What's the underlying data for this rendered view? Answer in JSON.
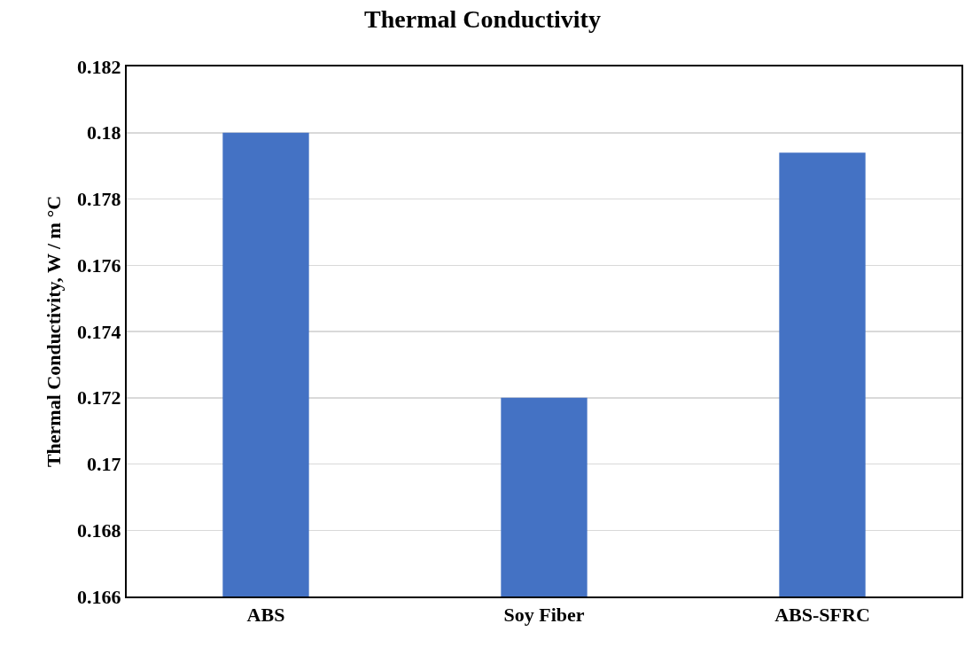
{
  "chart_data": {
    "type": "bar",
    "title": "Thermal Conductivity",
    "ylabel": "Thermal Conductivity, W / m °C",
    "categories": [
      "ABS",
      "Soy Fiber",
      "ABS-SFRC"
    ],
    "values": [
      0.18,
      0.172,
      0.1794
    ],
    "color": "#4472c4",
    "ylim": [
      0.166,
      0.182
    ],
    "yticks": [
      0.166,
      0.168,
      0.17,
      0.172,
      0.174,
      0.176,
      0.178,
      0.18,
      0.182
    ],
    "grid": "y"
  }
}
